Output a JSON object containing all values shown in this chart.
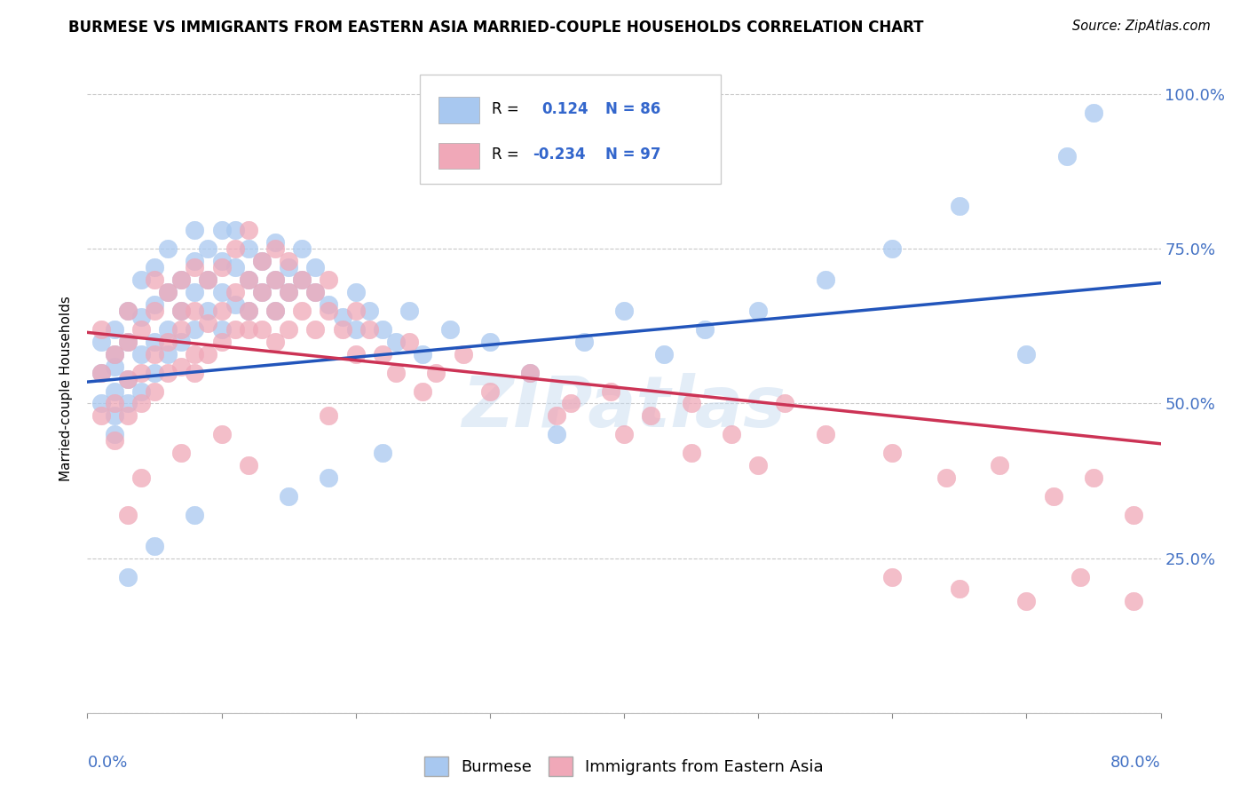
{
  "title": "BURMESE VS IMMIGRANTS FROM EASTERN ASIA MARRIED-COUPLE HOUSEHOLDS CORRELATION CHART",
  "source": "Source: ZipAtlas.com",
  "ylabel": "Married-couple Households",
  "xlim": [
    0.0,
    0.8
  ],
  "ylim": [
    0.0,
    1.05
  ],
  "blue_R": 0.124,
  "blue_N": 86,
  "pink_R": -0.234,
  "pink_N": 97,
  "blue_color": "#A8C8F0",
  "pink_color": "#F0A8B8",
  "blue_line_color": "#2255BB",
  "pink_line_color": "#CC3355",
  "legend_label_blue": "Burmese",
  "legend_label_pink": "Immigrants from Eastern Asia",
  "watermark": "ZIPatlas",
  "blue_trend_x0": 0.0,
  "blue_trend_y0": 0.535,
  "blue_trend_x1": 0.8,
  "blue_trend_y1": 0.695,
  "pink_trend_x0": 0.0,
  "pink_trend_y0": 0.615,
  "pink_trend_x1": 0.8,
  "pink_trend_y1": 0.435,
  "blue_x": [
    0.01,
    0.01,
    0.01,
    0.02,
    0.02,
    0.02,
    0.02,
    0.02,
    0.03,
    0.03,
    0.03,
    0.03,
    0.04,
    0.04,
    0.04,
    0.04,
    0.05,
    0.05,
    0.05,
    0.05,
    0.06,
    0.06,
    0.06,
    0.06,
    0.07,
    0.07,
    0.07,
    0.08,
    0.08,
    0.08,
    0.08,
    0.09,
    0.09,
    0.09,
    0.1,
    0.1,
    0.1,
    0.1,
    0.11,
    0.11,
    0.11,
    0.12,
    0.12,
    0.12,
    0.13,
    0.13,
    0.14,
    0.14,
    0.14,
    0.15,
    0.15,
    0.16,
    0.16,
    0.17,
    0.17,
    0.18,
    0.19,
    0.2,
    0.2,
    0.21,
    0.22,
    0.23,
    0.24,
    0.25,
    0.27,
    0.3,
    0.33,
    0.37,
    0.4,
    0.43,
    0.46,
    0.5,
    0.55,
    0.6,
    0.65,
    0.7,
    0.73,
    0.75,
    0.35,
    0.18,
    0.22,
    0.15,
    0.08,
    0.05,
    0.03,
    0.02
  ],
  "blue_y": [
    0.55,
    0.5,
    0.6,
    0.52,
    0.58,
    0.48,
    0.62,
    0.56,
    0.54,
    0.6,
    0.5,
    0.65,
    0.58,
    0.64,
    0.52,
    0.7,
    0.6,
    0.55,
    0.66,
    0.72,
    0.62,
    0.58,
    0.68,
    0.75,
    0.65,
    0.7,
    0.6,
    0.68,
    0.73,
    0.62,
    0.78,
    0.7,
    0.65,
    0.75,
    0.68,
    0.73,
    0.62,
    0.78,
    0.72,
    0.66,
    0.78,
    0.7,
    0.65,
    0.75,
    0.68,
    0.73,
    0.7,
    0.65,
    0.76,
    0.72,
    0.68,
    0.7,
    0.75,
    0.68,
    0.72,
    0.66,
    0.64,
    0.68,
    0.62,
    0.65,
    0.62,
    0.6,
    0.65,
    0.58,
    0.62,
    0.6,
    0.55,
    0.6,
    0.65,
    0.58,
    0.62,
    0.65,
    0.7,
    0.75,
    0.82,
    0.58,
    0.9,
    0.97,
    0.45,
    0.38,
    0.42,
    0.35,
    0.32,
    0.27,
    0.22,
    0.45
  ],
  "pink_x": [
    0.01,
    0.01,
    0.01,
    0.02,
    0.02,
    0.02,
    0.03,
    0.03,
    0.03,
    0.03,
    0.04,
    0.04,
    0.04,
    0.05,
    0.05,
    0.05,
    0.05,
    0.06,
    0.06,
    0.06,
    0.07,
    0.07,
    0.07,
    0.07,
    0.08,
    0.08,
    0.08,
    0.08,
    0.09,
    0.09,
    0.09,
    0.1,
    0.1,
    0.1,
    0.11,
    0.11,
    0.11,
    0.12,
    0.12,
    0.12,
    0.12,
    0.13,
    0.13,
    0.13,
    0.14,
    0.14,
    0.14,
    0.14,
    0.15,
    0.15,
    0.15,
    0.16,
    0.16,
    0.17,
    0.17,
    0.18,
    0.18,
    0.19,
    0.2,
    0.2,
    0.21,
    0.22,
    0.23,
    0.24,
    0.26,
    0.28,
    0.3,
    0.33,
    0.36,
    0.39,
    0.42,
    0.45,
    0.48,
    0.52,
    0.55,
    0.6,
    0.64,
    0.68,
    0.72,
    0.75,
    0.78,
    0.35,
    0.4,
    0.45,
    0.5,
    0.25,
    0.18,
    0.1,
    0.07,
    0.04,
    0.03,
    0.6,
    0.65,
    0.7,
    0.74,
    0.78,
    0.12
  ],
  "pink_y": [
    0.55,
    0.48,
    0.62,
    0.5,
    0.58,
    0.44,
    0.6,
    0.54,
    0.48,
    0.65,
    0.55,
    0.62,
    0.5,
    0.58,
    0.65,
    0.52,
    0.7,
    0.6,
    0.55,
    0.68,
    0.62,
    0.56,
    0.7,
    0.65,
    0.58,
    0.65,
    0.72,
    0.55,
    0.63,
    0.7,
    0.58,
    0.65,
    0.72,
    0.6,
    0.68,
    0.62,
    0.75,
    0.65,
    0.7,
    0.62,
    0.78,
    0.68,
    0.73,
    0.62,
    0.7,
    0.65,
    0.75,
    0.6,
    0.68,
    0.73,
    0.62,
    0.7,
    0.65,
    0.68,
    0.62,
    0.65,
    0.7,
    0.62,
    0.65,
    0.58,
    0.62,
    0.58,
    0.55,
    0.6,
    0.55,
    0.58,
    0.52,
    0.55,
    0.5,
    0.52,
    0.48,
    0.5,
    0.45,
    0.5,
    0.45,
    0.42,
    0.38,
    0.4,
    0.35,
    0.38,
    0.32,
    0.48,
    0.45,
    0.42,
    0.4,
    0.52,
    0.48,
    0.45,
    0.42,
    0.38,
    0.32,
    0.22,
    0.2,
    0.18,
    0.22,
    0.18,
    0.4
  ]
}
